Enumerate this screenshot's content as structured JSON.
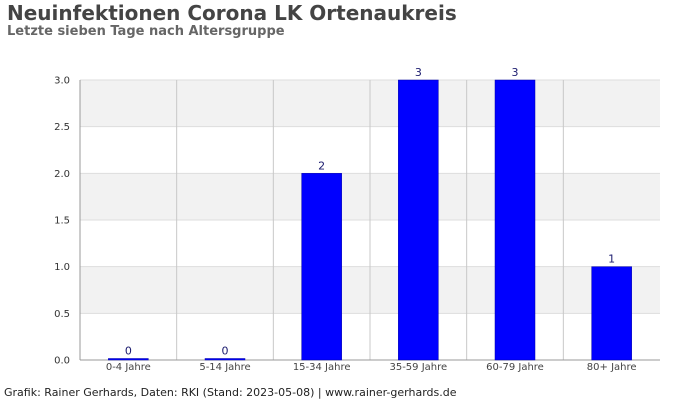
{
  "header": {
    "title": "Neuinfektionen Corona LK Ortenaukreis",
    "subtitle": "Letzte sieben Tage nach Altersgruppe"
  },
  "footer": {
    "text": "Grafik: Rainer Gerhards, Daten: RKI (Stand: 2023-05-08) | www.rainer-gerhards.de"
  },
  "colors": {
    "bar": "#0000ff",
    "band": "#f2f2f2",
    "grid": "#c8c8c8"
  },
  "chart_data": {
    "type": "bar",
    "title": "Neuinfektionen Corona LK Ortenaukreis",
    "subtitle": "Letzte sieben Tage nach Altersgruppe",
    "xlabel": "",
    "ylabel": "",
    "categories": [
      "0-4 Jahre",
      "5-14 Jahre",
      "15-34 Jahre",
      "35-59 Jahre",
      "60-79 Jahre",
      "80+ Jahre"
    ],
    "values": [
      0,
      0,
      2,
      3,
      3,
      1
    ],
    "value_labels": [
      "0",
      "0",
      "2",
      "3",
      "3",
      "1"
    ],
    "ylim": [
      0,
      3
    ],
    "yticks": [
      "0.0",
      "0.5",
      "1.0",
      "1.5",
      "2.0",
      "2.5",
      "3.0"
    ],
    "grid": true,
    "legend": false
  }
}
